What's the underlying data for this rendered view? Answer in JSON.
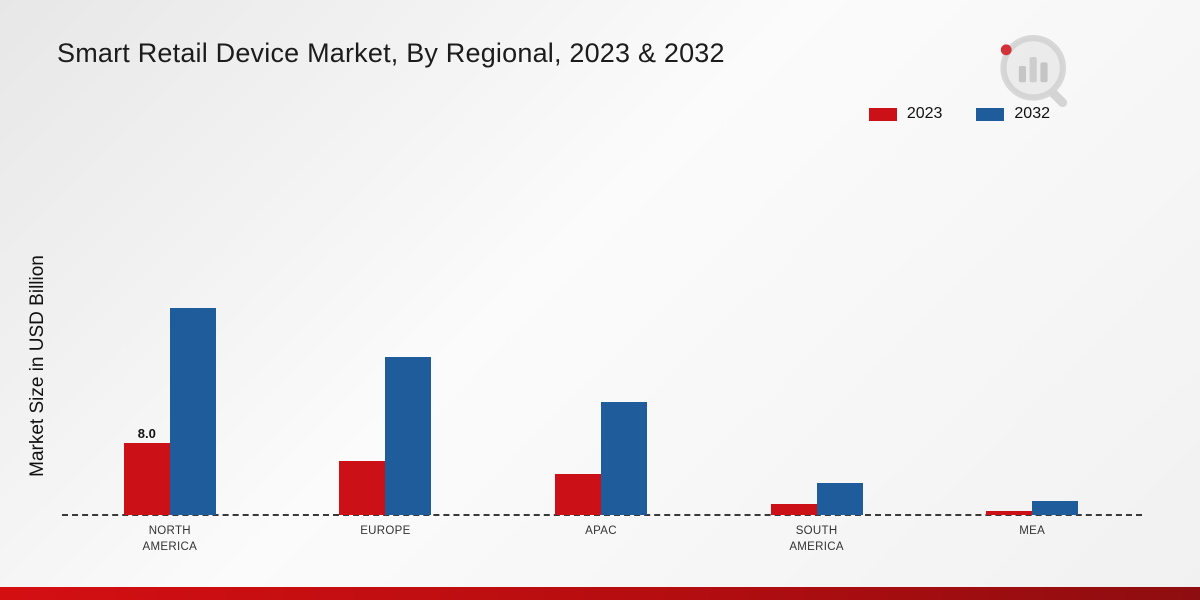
{
  "title": "Smart Retail Device Market, By Regional, 2023 & 2032",
  "ylabel": "Market Size in USD Billion",
  "colors": {
    "red": "#cc1017",
    "blue": "#1e5c9b"
  },
  "legend": [
    {
      "label": "2023",
      "color": "#cc1017"
    },
    {
      "label": "2032",
      "color": "#1e5c9b"
    }
  ],
  "chart_data": {
    "type": "bar",
    "categories": [
      "NORTH AMERICA",
      "EUROPE",
      "APAC",
      "SOUTH AMERICA",
      "MEA"
    ],
    "series": [
      {
        "name": "2023",
        "color": "#cc1017",
        "values": [
          8.0,
          6.0,
          4.5,
          1.2,
          0.4
        ]
      },
      {
        "name": "2032",
        "color": "#1e5c9b",
        "values": [
          23.0,
          17.5,
          12.5,
          3.5,
          1.6
        ]
      }
    ],
    "annotations": [
      {
        "series_index": 0,
        "category_index": 0,
        "text": "8.0"
      }
    ],
    "xlabel": "",
    "ylabel": "Market Size in USD Billion",
    "ylim": [
      0,
      25
    ],
    "grid": false,
    "legend_position": "top-right",
    "baseline_style": "dashed"
  }
}
